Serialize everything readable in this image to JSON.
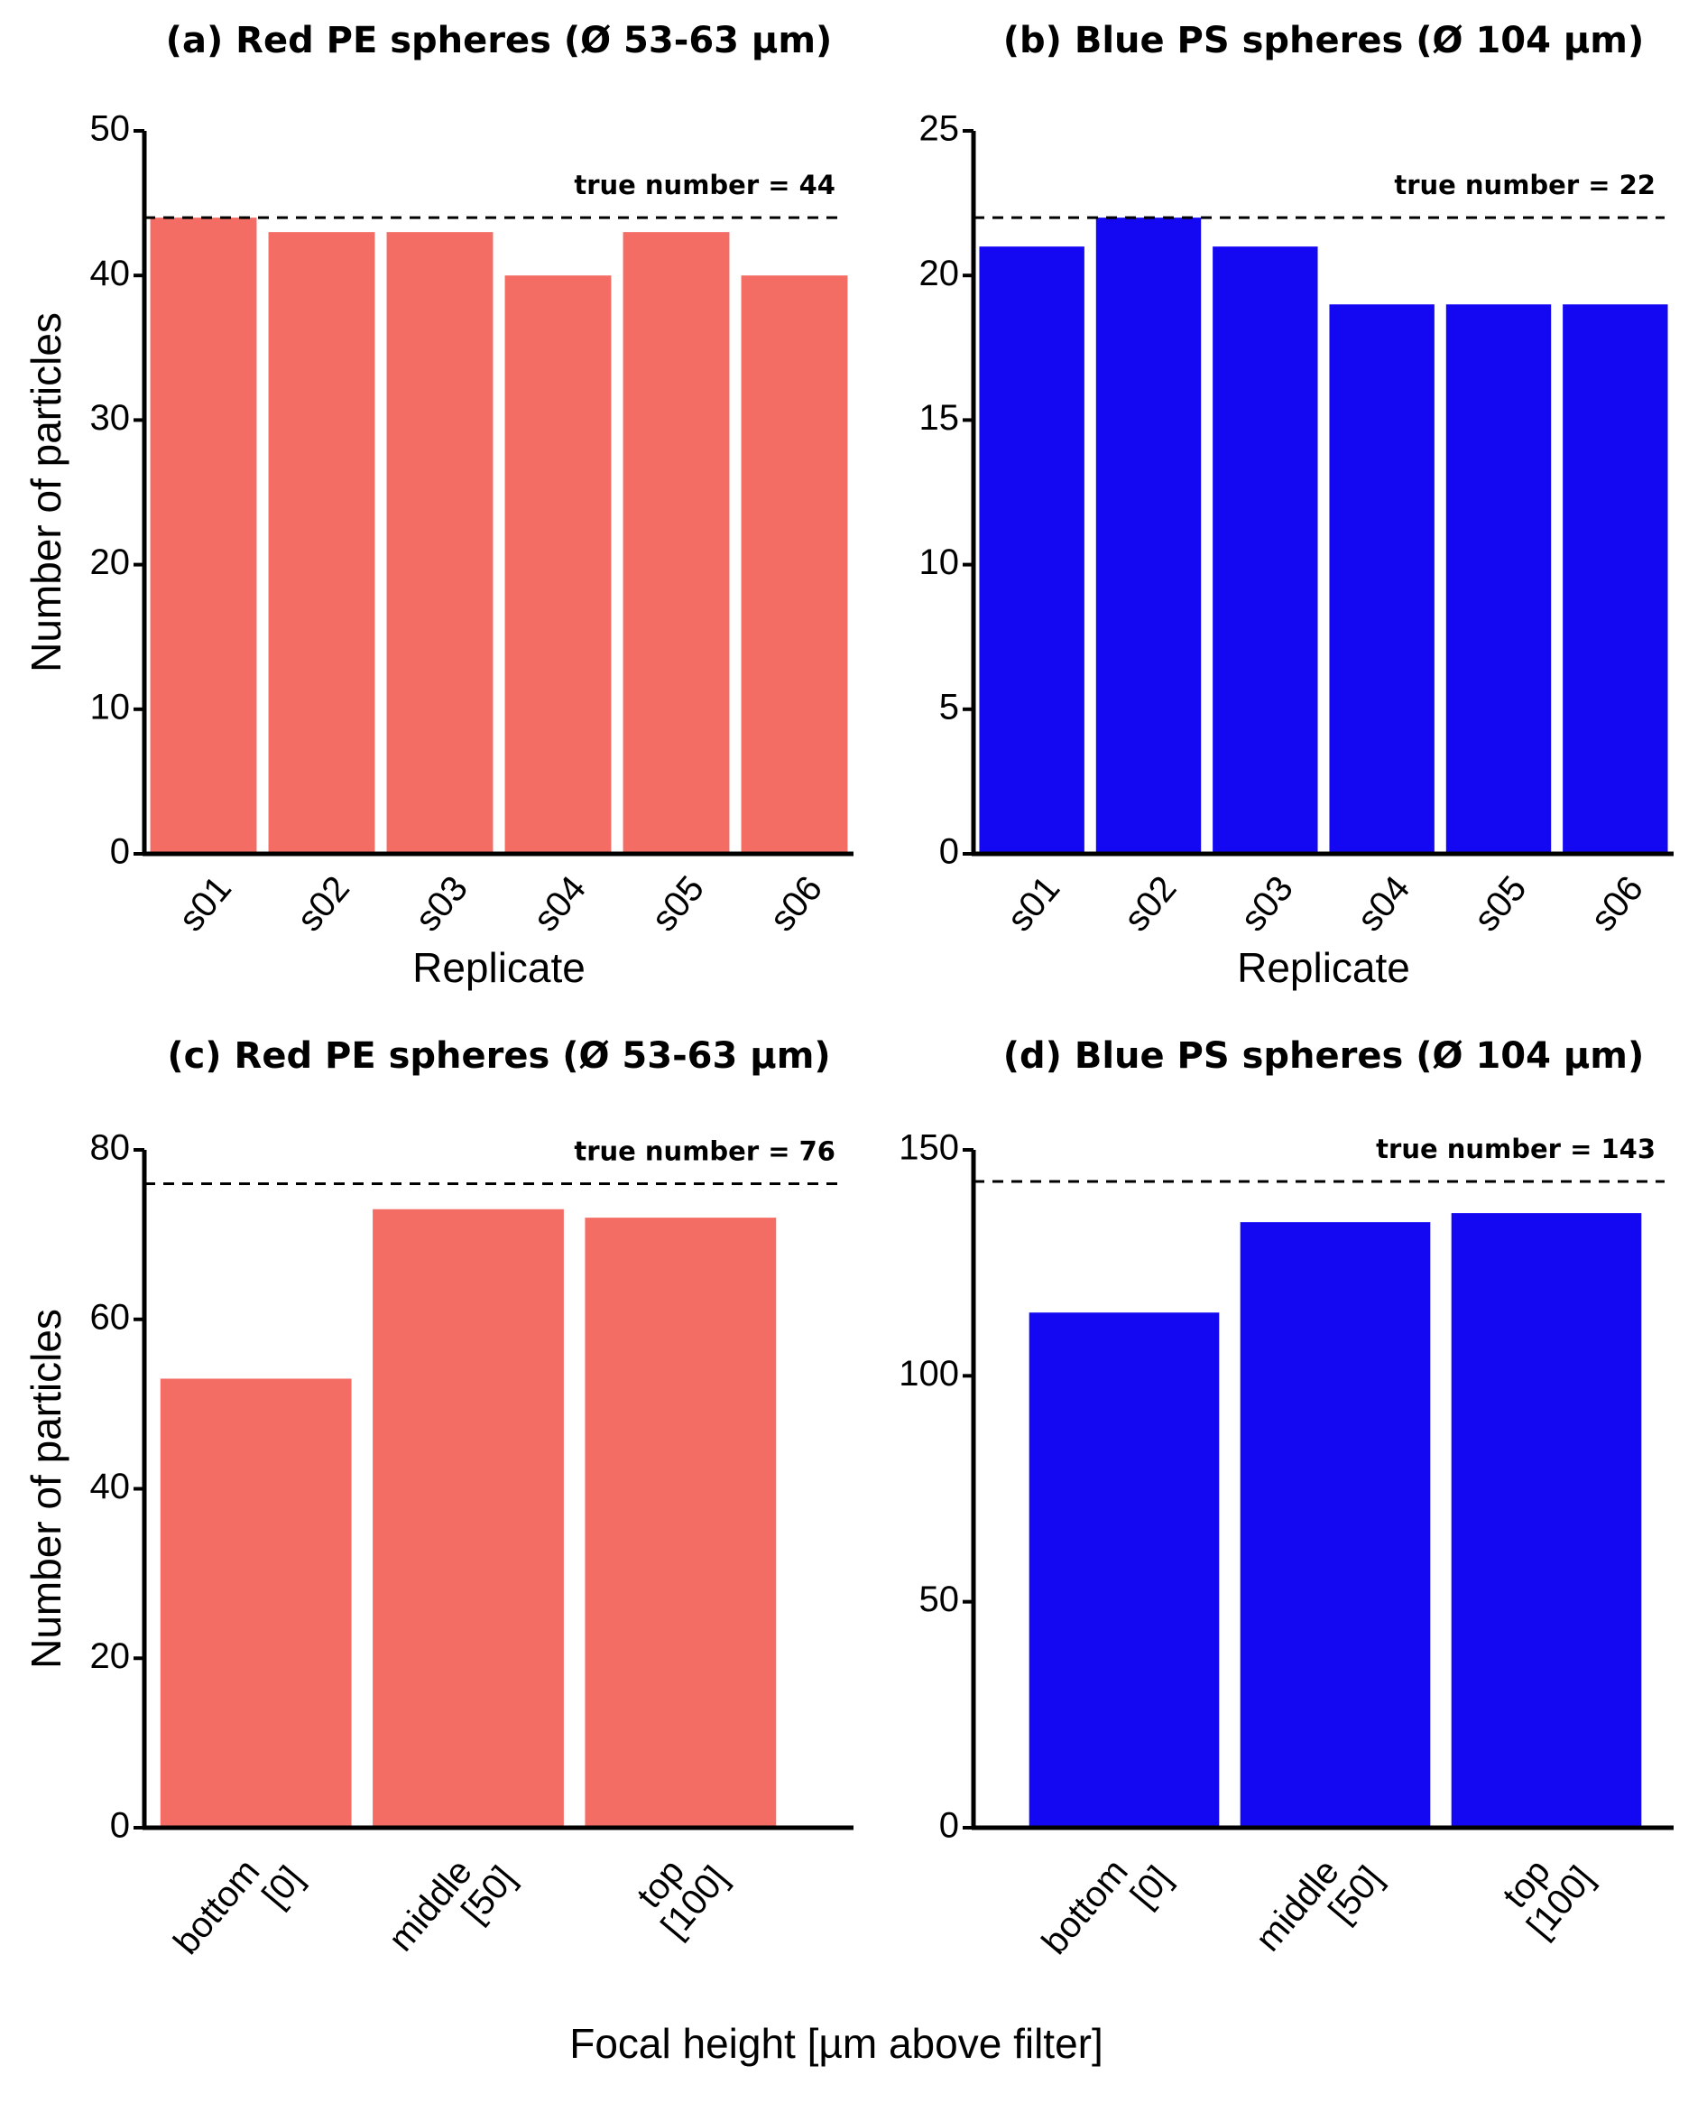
{
  "chart_data": [
    {
      "type": "bar",
      "title": "(a) Red PE spheres (Ø 53-63 µm)",
      "ylabel": "Number of particles",
      "xlabel": "Replicate",
      "categories": [
        [
          "s01"
        ],
        [
          "s02"
        ],
        [
          "s03"
        ],
        [
          "s04"
        ],
        [
          "s05"
        ],
        [
          "s06"
        ]
      ],
      "values": [
        44,
        43,
        43,
        40,
        43,
        40
      ],
      "color": "#f46d65",
      "ylim": [
        0,
        50
      ],
      "yticks": [
        0,
        10,
        20,
        30,
        40,
        50
      ],
      "reference_line": {
        "value": 44,
        "label": "true number = 44"
      }
    },
    {
      "type": "bar",
      "title": "(b) Blue PS spheres (Ø 104 µm)",
      "xlabel": "Replicate",
      "categories": [
        [
          "s01"
        ],
        [
          "s02"
        ],
        [
          "s03"
        ],
        [
          "s04"
        ],
        [
          "s05"
        ],
        [
          "s06"
        ]
      ],
      "values": [
        21,
        22,
        21,
        19,
        19,
        19
      ],
      "color": "#1408f2",
      "ylim": [
        0,
        25
      ],
      "yticks": [
        0,
        5,
        10,
        15,
        20,
        25
      ],
      "reference_line": {
        "value": 22,
        "label": "true number = 22"
      }
    },
    {
      "type": "bar",
      "title": "(c) Red PE spheres (Ø 53-63 µm)",
      "ylabel": "Number of particles",
      "categories": [
        [
          "bottom",
          "[0]"
        ],
        [
          "middle",
          "[50]"
        ],
        [
          "top",
          "[100]"
        ]
      ],
      "values": [
        53,
        73,
        72
      ],
      "color": "#f46d65",
      "ylim": [
        0,
        80
      ],
      "yticks": [
        0,
        20,
        40,
        60,
        80
      ],
      "reference_line": {
        "value": 76,
        "label": "true number = 76"
      }
    },
    {
      "type": "bar",
      "title": "(d) Blue PS spheres (Ø 104 µm)",
      "categories": [
        [
          "bottom",
          "[0]"
        ],
        [
          "middle",
          "[50]"
        ],
        [
          "top",
          "[100]"
        ]
      ],
      "values": [
        114,
        134,
        136
      ],
      "color": "#1408f2",
      "ylim": [
        0,
        150
      ],
      "yticks": [
        0,
        50,
        100,
        150
      ],
      "reference_line": {
        "value": 143,
        "label": "true number = 143"
      }
    }
  ],
  "figure_xlabel": "Focal height [µm above filter]"
}
